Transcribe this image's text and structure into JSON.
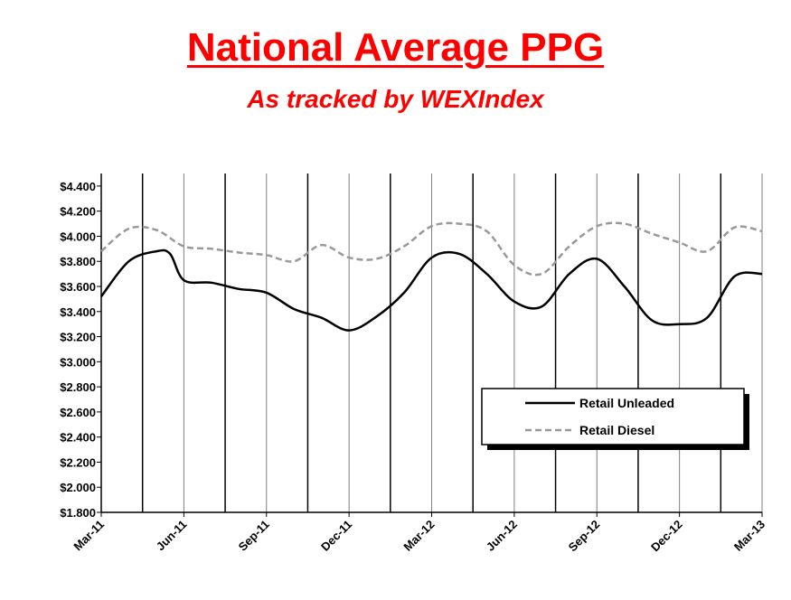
{
  "title": "National Average PPG",
  "subtitle": "As tracked by WEXIndex",
  "colors": {
    "title": "#ff0000",
    "unleaded": "#000000",
    "diesel": "#999999",
    "grid": "#000000"
  },
  "chart_data": {
    "type": "line",
    "title": "National Average PPG",
    "subtitle": "As tracked by WEXIndex",
    "xlabel": "",
    "ylabel": "",
    "x_ticks": [
      "Mar-11",
      "Jun-11",
      "Sep-11",
      "Dec-11",
      "Mar-12",
      "Jun-12",
      "Sep-12",
      "Dec-12",
      "Mar-13"
    ],
    "y_ticks": [
      "$1.800",
      "$2.000",
      "$2.200",
      "$2.400",
      "$2.600",
      "$2.800",
      "$3.000",
      "$3.200",
      "$3.400",
      "$3.600",
      "$3.800",
      "$4.000",
      "$4.200",
      "$4.400"
    ],
    "ylim": [
      1.8,
      4.5
    ],
    "xlim": [
      0,
      24
    ],
    "x_unit": "months since Mar-11",
    "grid": true,
    "legend_position": "lower-right",
    "series": [
      {
        "name": "Retail Unleaded",
        "style": "solid",
        "x": [
          0,
          1,
          2,
          2.5,
          3,
          4,
          5,
          6,
          7,
          8,
          9,
          10,
          11,
          12,
          13,
          14,
          15,
          16,
          17,
          18,
          19,
          20,
          21,
          22,
          23,
          24
        ],
        "values": [
          3.52,
          3.8,
          3.88,
          3.86,
          3.65,
          3.63,
          3.58,
          3.55,
          3.42,
          3.35,
          3.25,
          3.36,
          3.55,
          3.83,
          3.86,
          3.7,
          3.48,
          3.44,
          3.7,
          3.82,
          3.6,
          3.33,
          3.3,
          3.35,
          3.68,
          3.7
        ]
      },
      {
        "name": "Retail Diesel",
        "style": "dashed",
        "x": [
          0,
          1,
          2,
          3,
          4,
          5,
          6,
          7,
          8,
          9,
          10,
          11,
          12,
          13,
          14,
          15,
          16,
          17,
          18,
          19,
          20,
          21,
          22,
          23,
          24
        ],
        "values": [
          3.88,
          4.06,
          4.05,
          3.92,
          3.9,
          3.87,
          3.85,
          3.8,
          3.93,
          3.83,
          3.82,
          3.92,
          4.08,
          4.1,
          4.04,
          3.77,
          3.7,
          3.92,
          4.08,
          4.1,
          4.02,
          3.95,
          3.88,
          4.07,
          4.04
        ]
      }
    ]
  }
}
